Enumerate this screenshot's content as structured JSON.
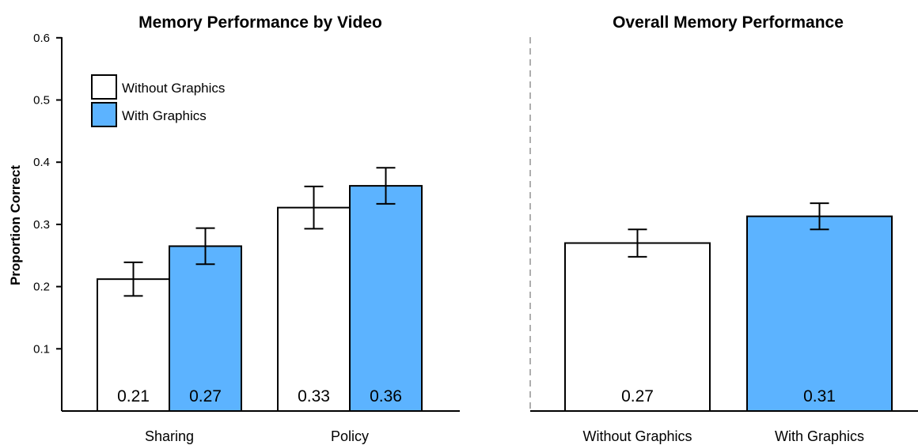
{
  "colors": {
    "without": "#ffffff",
    "with": "#5cb3ff",
    "stroke": "#000000"
  },
  "chart_data": [
    {
      "type": "bar",
      "title": "Memory Performance by Video",
      "ylabel": "Proportion Correct",
      "xlabel": "",
      "ylim": [
        0,
        0.6
      ],
      "yticks": [
        "0.1",
        "0.2",
        "0.3",
        "0.4",
        "0.5",
        "0.6"
      ],
      "grid": false,
      "legend_position": "top-left",
      "categories": [
        "Sharing",
        "Policy"
      ],
      "series": [
        {
          "name": "Without Graphics",
          "values": [
            0.212,
            0.327
          ],
          "errors": [
            0.027,
            0.034
          ],
          "labels": [
            "0.21",
            "0.33"
          ]
        },
        {
          "name": "With Graphics",
          "values": [
            0.265,
            0.362
          ],
          "errors": [
            0.029,
            0.029
          ],
          "labels": [
            "0.27",
            "0.36"
          ]
        }
      ]
    },
    {
      "type": "bar",
      "title": "Overall Memory Performance",
      "ylim": [
        0,
        0.6
      ],
      "grid": false,
      "categories": [
        "Without Graphics",
        "With Graphics"
      ],
      "values": [
        0.27,
        0.313
      ],
      "errors": [
        0.022,
        0.021
      ],
      "labels": [
        "0.27",
        "0.31"
      ]
    }
  ]
}
